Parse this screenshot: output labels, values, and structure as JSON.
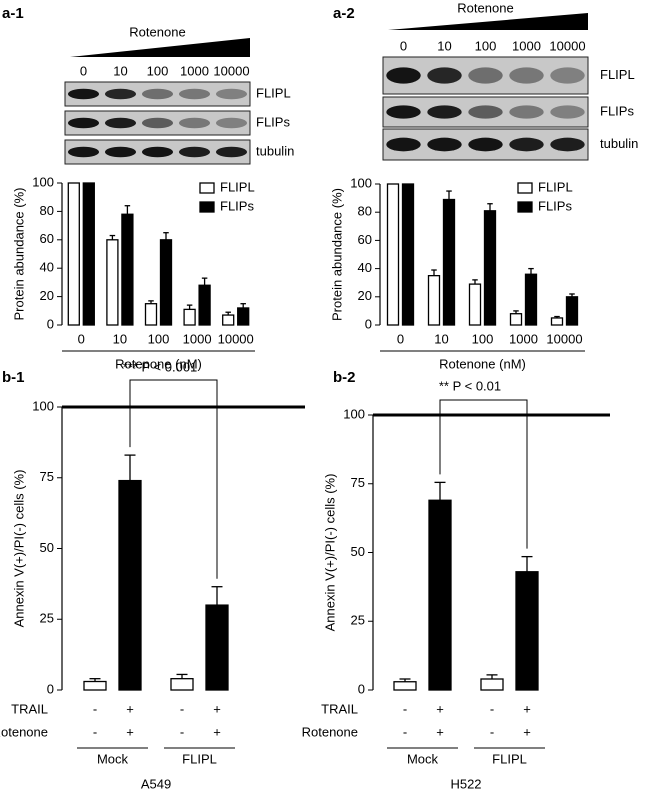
{
  "chart_data": [
    {
      "type": "bar",
      "panel": "a-1",
      "blot": {
        "label": "Rotenone",
        "doses": [
          "0",
          "10",
          "100",
          "1000",
          "10000"
        ],
        "rows": [
          "FLIPL",
          "FLIPs",
          "tubulin"
        ]
      },
      "categories": [
        "0",
        "10",
        "100",
        "1000",
        "10000"
      ],
      "series": [
        {
          "name": "FLIPL",
          "color": "#ffffff",
          "values": [
            100,
            60,
            15,
            11,
            7
          ],
          "errors": [
            0,
            3,
            2,
            3,
            2
          ]
        },
        {
          "name": "FLIPs",
          "color": "#000000",
          "values": [
            100,
            78,
            60,
            28,
            12
          ],
          "errors": [
            0,
            6,
            5,
            5,
            3
          ]
        }
      ],
      "ylim": [
        0,
        100
      ],
      "yticks": [
        0,
        20,
        40,
        60,
        80,
        100
      ],
      "y_label": "Protein abundance (%)",
      "x_label": "Rotenone (nM)"
    },
    {
      "type": "bar",
      "panel": "a-2",
      "blot": {
        "label": "Rotenone",
        "doses": [
          "0",
          "10",
          "100",
          "1000",
          "10000"
        ],
        "rows": [
          "FLIPL",
          "FLIPs",
          "tubulin"
        ]
      },
      "categories": [
        "0",
        "10",
        "100",
        "1000",
        "10000"
      ],
      "series": [
        {
          "name": "FLIPL",
          "color": "#ffffff",
          "values": [
            100,
            35,
            29,
            8,
            5
          ],
          "errors": [
            0,
            4,
            3,
            2,
            1
          ]
        },
        {
          "name": "FLIPs",
          "color": "#000000",
          "values": [
            100,
            89,
            81,
            36,
            20
          ],
          "errors": [
            0,
            6,
            5,
            4,
            2
          ]
        }
      ],
      "ylim": [
        0,
        100
      ],
      "yticks": [
        0,
        20,
        40,
        60,
        80,
        100
      ],
      "y_label": "Protein abundance (%)",
      "x_label": "Rotenone (nM)"
    },
    {
      "type": "bar",
      "panel": "b-1",
      "values": [
        3,
        74,
        4,
        30
      ],
      "errors": [
        1,
        9,
        1.5,
        6.5
      ],
      "colors": [
        "#ffffff",
        "#000000",
        "#ffffff",
        "#000000"
      ],
      "conditions": [
        {
          "name": "TRAIL",
          "values": [
            "-",
            "+",
            "-",
            "+"
          ]
        },
        {
          "name": "Rotenone",
          "values": [
            "-",
            "+",
            "-",
            "+"
          ]
        }
      ],
      "groups": [
        "Mock",
        "FLIPL"
      ],
      "cell_line": "A549",
      "annotation": "*** P < 0.001",
      "ylim": [
        0,
        100
      ],
      "yticks": [
        0,
        25,
        50,
        75,
        100
      ],
      "y_label": "Annexin V(+)/PI(-) cells (%)"
    },
    {
      "type": "bar",
      "panel": "b-2",
      "values": [
        3,
        69,
        4,
        43
      ],
      "errors": [
        1,
        6.5,
        1.5,
        5.5
      ],
      "colors": [
        "#ffffff",
        "#000000",
        "#ffffff",
        "#000000"
      ],
      "conditions": [
        {
          "name": "TRAIL",
          "values": [
            "-",
            "+",
            "-",
            "+"
          ]
        },
        {
          "name": "Rotenone",
          "values": [
            "-",
            "+",
            "-",
            "+"
          ]
        }
      ],
      "groups": [
        "Mock",
        "FLIPL"
      ],
      "cell_line": "H522",
      "annotation": "** P < 0.01",
      "ylim": [
        0,
        100
      ],
      "yticks": [
        0,
        25,
        50,
        75,
        100
      ],
      "y_label": "Annexin V(+)/PI(-) cells (%)"
    }
  ]
}
